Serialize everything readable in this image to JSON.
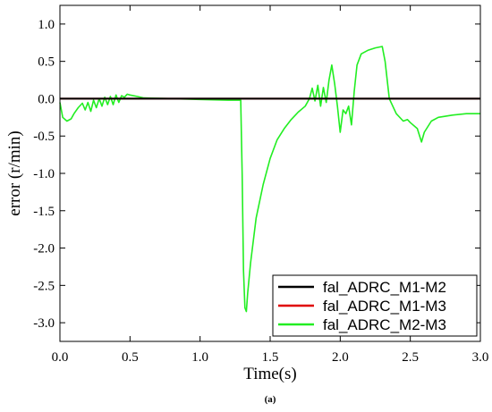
{
  "caption": "(a)",
  "chart_data": {
    "type": "line",
    "xlabel": "Time(s)",
    "ylabel": "error (r/min)",
    "xlim": [
      0.0,
      3.0
    ],
    "ylim": [
      -3.25,
      1.25
    ],
    "x_ticks": [
      0.0,
      0.5,
      1.0,
      1.5,
      2.0,
      2.5,
      3.0
    ],
    "x_tick_labels": [
      "0.0",
      "0.5",
      "1.0",
      "1.5",
      "2.0",
      "2.5",
      "3.0"
    ],
    "y_ticks": [
      1.0,
      0.5,
      0.0,
      -0.5,
      -1.0,
      -1.5,
      -2.0,
      -2.5,
      -3.0
    ],
    "y_tick_labels": [
      "1.0",
      "0.5",
      "0.0",
      "-0.5",
      "-1.0",
      "-1.5",
      "-2.0",
      "-2.5",
      "-3.0"
    ],
    "grid": false,
    "legend_position": "bottom-right",
    "series": [
      {
        "name": "fal_ADRC_M1-M2",
        "color": "#000000",
        "x": [
          0.0,
          3.0
        ],
        "y": [
          0.0,
          0.0
        ]
      },
      {
        "name": "fal_ADRC_M1-M3",
        "color": "#e00000",
        "x": [
          0.0,
          3.0
        ],
        "y": [
          0.0,
          0.0
        ]
      },
      {
        "name": "fal_ADRC_M2-M3",
        "color": "#22ee22",
        "x": [
          0.0,
          0.02,
          0.05,
          0.08,
          0.1,
          0.13,
          0.16,
          0.18,
          0.2,
          0.22,
          0.24,
          0.26,
          0.28,
          0.3,
          0.32,
          0.34,
          0.36,
          0.38,
          0.4,
          0.42,
          0.44,
          0.46,
          0.48,
          0.5,
          0.55,
          0.6,
          0.8,
          1.0,
          1.2,
          1.29,
          1.3,
          1.31,
          1.32,
          1.33,
          1.34,
          1.36,
          1.4,
          1.45,
          1.5,
          1.55,
          1.6,
          1.65,
          1.7,
          1.75,
          1.78,
          1.8,
          1.82,
          1.84,
          1.86,
          1.88,
          1.9,
          1.92,
          1.94,
          1.96,
          1.98,
          2.0,
          2.02,
          2.04,
          2.06,
          2.08,
          2.1,
          2.12,
          2.15,
          2.2,
          2.25,
          2.3,
          2.32,
          2.35,
          2.4,
          2.45,
          2.48,
          2.5,
          2.55,
          2.58,
          2.6,
          2.65,
          2.7,
          2.8,
          2.9,
          3.0
        ],
        "y": [
          -0.05,
          -0.25,
          -0.3,
          -0.27,
          -0.2,
          -0.12,
          -0.06,
          -0.15,
          -0.05,
          -0.17,
          -0.02,
          -0.12,
          0.0,
          -0.1,
          0.02,
          -0.08,
          0.03,
          -0.08,
          0.05,
          -0.05,
          0.04,
          0.02,
          0.06,
          0.05,
          0.03,
          0.01,
          0.0,
          -0.01,
          -0.02,
          -0.02,
          -1.0,
          -2.3,
          -2.8,
          -2.85,
          -2.6,
          -2.2,
          -1.6,
          -1.15,
          -0.8,
          -0.55,
          -0.4,
          -0.28,
          -0.18,
          -0.1,
          0.0,
          0.14,
          -0.03,
          0.18,
          -0.1,
          0.15,
          -0.05,
          0.25,
          0.45,
          0.2,
          -0.1,
          -0.45,
          -0.15,
          -0.2,
          -0.1,
          -0.35,
          0.1,
          0.45,
          0.6,
          0.65,
          0.68,
          0.7,
          0.5,
          0.0,
          -0.2,
          -0.3,
          -0.28,
          -0.32,
          -0.4,
          -0.58,
          -0.45,
          -0.3,
          -0.25,
          -0.22,
          -0.2,
          -0.2
        ]
      }
    ]
  }
}
